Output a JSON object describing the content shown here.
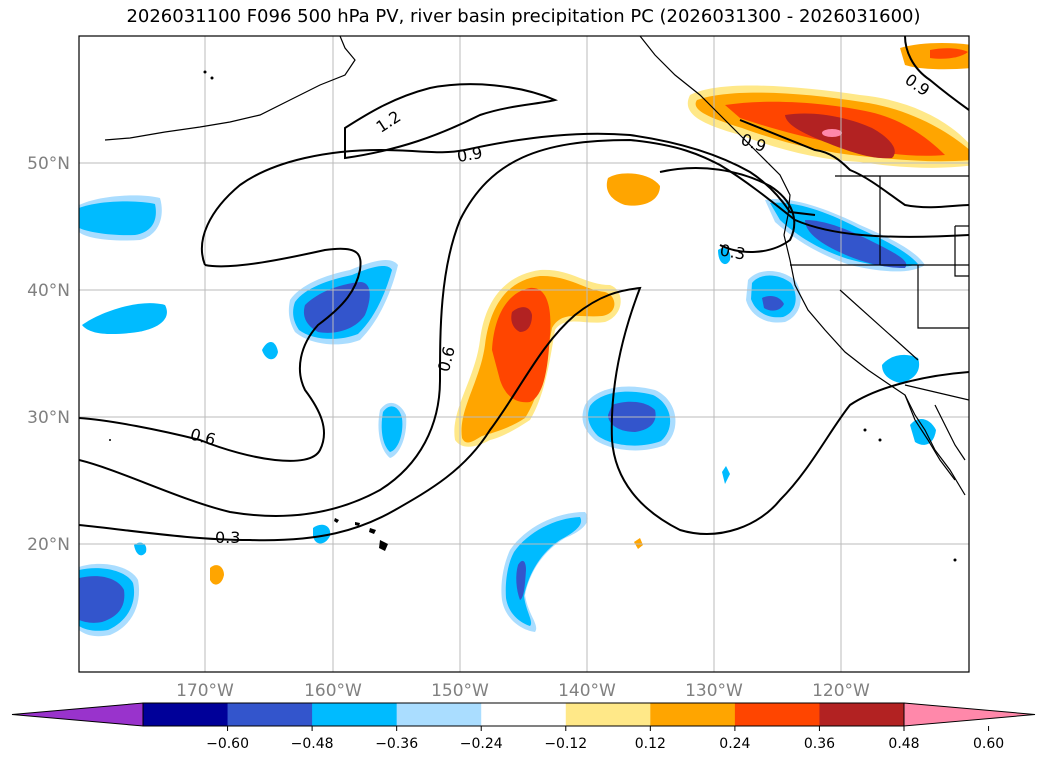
{
  "title": "2026031100 F096 500 hPa PV, river basin precipitation PC (2026031300 - 2026031600)",
  "lat_labels": [
    "50°N",
    "40°N",
    "30°N",
    "20°N"
  ],
  "lon_labels": [
    "170°W",
    "160°W",
    "150°W",
    "140°W",
    "130°W",
    "120°W"
  ],
  "contour_labels": [
    "1.2",
    "0.9",
    "0.9",
    "0.9",
    "0.6",
    "0.6",
    "0.3",
    "0.3"
  ],
  "colorbar": {
    "ticks": [
      "−0.60",
      "−0.48",
      "−0.36",
      "−0.24",
      "−0.12",
      "0.12",
      "0.24",
      "0.36",
      "0.48",
      "0.60"
    ],
    "colors": [
      "#9933cc",
      "#000099",
      "#3355cc",
      "#00bbff",
      "#aaddff",
      "#ffffff",
      "#ffe888",
      "#ffa500",
      "#ff4500",
      "#b22222",
      "#ff88aa"
    ]
  }
}
